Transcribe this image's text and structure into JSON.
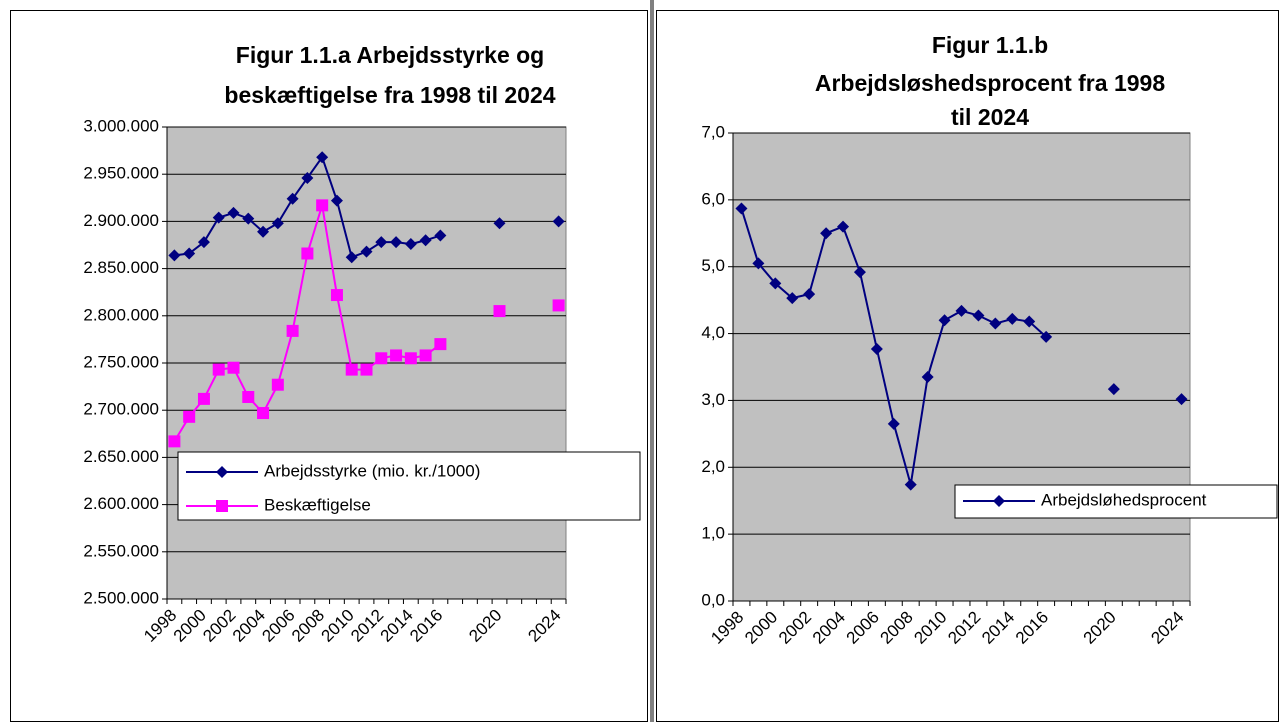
{
  "chart_data": [
    {
      "type": "line",
      "title": [
        "Figur 1.1.a Arbejdsstyrke og",
        "beskæftigelse fra 1998 til 2024"
      ],
      "categories": [
        "1998",
        null,
        "2000",
        null,
        "2002",
        null,
        "2004",
        null,
        "2006",
        null,
        "2008",
        null,
        "2010",
        null,
        "2012",
        null,
        "2014",
        null,
        "2016",
        null,
        null,
        null,
        "2020",
        null,
        null,
        null,
        "2024"
      ],
      "series": [
        {
          "name": "Arbejdsstyrke (mio. kr./1000)",
          "color": "#000080",
          "marker": "diamond",
          "values": [
            2864000,
            2866000,
            2878000,
            2904000,
            2909000,
            2903000,
            2889000,
            2898000,
            2924000,
            2946000,
            2968000,
            2922000,
            2862000,
            2868000,
            2878000,
            2878000,
            2876000,
            2880000,
            2885000,
            null,
            null,
            null,
            2898000,
            null,
            null,
            null,
            2900000
          ]
        },
        {
          "name": "Beskæftigelse",
          "color": "#ff00ff",
          "marker": "square",
          "values": [
            2667000,
            2693000,
            2712000,
            2743000,
            2745000,
            2714000,
            2697000,
            2727000,
            2784000,
            2866000,
            2917000,
            2822000,
            2743000,
            2743000,
            2755000,
            2758000,
            2755000,
            2758000,
            2770000,
            null,
            null,
            null,
            2805000,
            null,
            null,
            null,
            2811000
          ]
        }
      ],
      "ylim": [
        2500000,
        3000000
      ],
      "yticks": [
        {
          "value": 2500000,
          "label": "2.500.000"
        },
        {
          "value": 2550000,
          "label": "2.550.000"
        },
        {
          "value": 2600000,
          "label": "2.600.000"
        },
        {
          "value": 2650000,
          "label": "2.650.000"
        },
        {
          "value": 2700000,
          "label": "2.700.000"
        },
        {
          "value": 2750000,
          "label": "2.750.000"
        },
        {
          "value": 2800000,
          "label": "2.800.000"
        },
        {
          "value": 2850000,
          "label": "2.850.000"
        },
        {
          "value": 2900000,
          "label": "2.900.000"
        },
        {
          "value": 2950000,
          "label": "2.950.000"
        },
        {
          "value": 3000000,
          "label": "3.000.000"
        }
      ],
      "grid": true,
      "background": "#c0c0c0"
    },
    {
      "type": "line",
      "title": [
        "Figur 1.1.b",
        "Arbejdsløshedsprocent fra 1998",
        "til 2024"
      ],
      "categories": [
        "1998",
        null,
        "2000",
        null,
        "2002",
        null,
        "2004",
        null,
        "2006",
        null,
        "2008",
        null,
        "2010",
        null,
        "2012",
        null,
        "2014",
        null,
        "2016",
        null,
        null,
        null,
        "2020",
        null,
        null,
        null,
        "2024"
      ],
      "series": [
        {
          "name": "Arbejdsløhedsprocent",
          "color": "#000080",
          "marker": "diamond",
          "values": [
            5.87,
            5.05,
            4.75,
            4.53,
            4.59,
            5.5,
            5.6,
            4.92,
            3.77,
            2.65,
            1.74,
            3.35,
            4.2,
            4.34,
            4.27,
            4.15,
            4.22,
            4.18,
            3.95,
            null,
            null,
            null,
            3.17,
            null,
            null,
            null,
            3.02
          ]
        }
      ],
      "ylim": [
        0,
        7
      ],
      "yticks": [
        {
          "value": 0,
          "label": "0,0"
        },
        {
          "value": 1,
          "label": "1,0"
        },
        {
          "value": 2,
          "label": "2,0"
        },
        {
          "value": 3,
          "label": "3,0"
        },
        {
          "value": 4,
          "label": "4,0"
        },
        {
          "value": 5,
          "label": "5,0"
        },
        {
          "value": 6,
          "label": "6,0"
        },
        {
          "value": 7,
          "label": "7,0"
        }
      ],
      "grid": true,
      "background": "#c0c0c0"
    }
  ]
}
